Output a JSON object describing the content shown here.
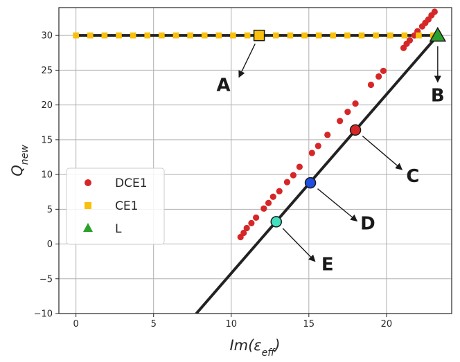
{
  "chart_data": {
    "type": "scatter",
    "xlabel_parts": {
      "base": "Im(",
      "sym": "ε",
      "sub": "eff",
      "close": ")"
    },
    "ylabel_parts": {
      "base": "Q",
      "sub": "new"
    },
    "xlim": [
      -1.1,
      24.2
    ],
    "ylim": [
      -10,
      34
    ],
    "xticks": [
      0,
      5,
      10,
      15,
      20
    ],
    "yticks": [
      -10,
      -5,
      0,
      5,
      10,
      15,
      20,
      25,
      30
    ],
    "grid": true,
    "legend_position": "center-left",
    "legend": [
      {
        "label": "DCE1",
        "marker": "circle",
        "color": "#d62728"
      },
      {
        "label": "CE1",
        "marker": "square",
        "color": "#f9c00c"
      },
      {
        "label": "L",
        "marker": "triangle",
        "color": "#2ca02c"
      }
    ],
    "lines": [
      {
        "x": [
          0,
          23.3
        ],
        "y": [
          30,
          30
        ],
        "color": "#222222"
      },
      {
        "x": [
          7.75,
          23.3
        ],
        "y": [
          -10,
          30
        ],
        "color": "#222222"
      }
    ],
    "series": [
      {
        "name": "DCE1",
        "marker": "circle",
        "color": "#d62728",
        "x": [
          10.6,
          10.8,
          11.0,
          11.3,
          11.6,
          12.1,
          12.4,
          12.7,
          13.1,
          13.6,
          14.0,
          14.4,
          15.2,
          15.6,
          16.2,
          17.0,
          17.5,
          18.0,
          19.0,
          19.5,
          19.8,
          21.1,
          21.3,
          21.5,
          21.8,
          22.0,
          22.3,
          22.5,
          22.7,
          22.9,
          23.1
        ],
        "y": [
          1.0,
          1.6,
          2.3,
          3.0,
          3.8,
          5.1,
          5.9,
          6.8,
          7.6,
          8.9,
          9.9,
          11.1,
          13.1,
          14.1,
          15.7,
          17.7,
          19.0,
          20.2,
          22.9,
          24.1,
          24.9,
          28.2,
          28.8,
          29.3,
          30.0,
          30.6,
          31.3,
          31.8,
          32.3,
          32.9,
          33.4
        ]
      },
      {
        "name": "CE1",
        "marker": "square",
        "color": "#f9c00c",
        "x": [
          0,
          0.92,
          1.84,
          2.76,
          3.68,
          4.6,
          5.52,
          6.44,
          7.36,
          8.28,
          9.2,
          10.12,
          11.04,
          11.96,
          12.88,
          13.8,
          14.72,
          15.64,
          16.56,
          17.48,
          18.4,
          19.32,
          20.24,
          21.16,
          22.08,
          23.0
        ],
        "y": [
          30,
          30,
          30,
          30,
          30,
          30,
          30,
          30,
          30,
          30,
          30,
          30,
          30,
          30,
          30,
          30,
          30,
          30,
          30,
          30,
          30,
          30,
          30,
          30,
          30,
          30
        ]
      },
      {
        "name": "L",
        "marker": "triangle",
        "color": "#2ca02c",
        "x": [
          23.3
        ],
        "y": [
          30
        ]
      }
    ],
    "highlights": [
      {
        "label": "A",
        "x": 11.8,
        "y": 30.0,
        "marker": "square",
        "color": "#f9c00c",
        "text_x": 9.5,
        "text_y": 22.0,
        "arrow_to": [
          10.5,
          24.0
        ]
      },
      {
        "label": "B",
        "x": 23.3,
        "y": 30.0,
        "marker": "triangle",
        "color": "#2ca02c",
        "text_x": 23.3,
        "text_y": 20.5,
        "arrow_to": [
          23.3,
          23.3
        ]
      },
      {
        "label": "C",
        "x": 18.0,
        "y": 16.4,
        "marker": "circle",
        "color": "#d62728",
        "text_x": 21.7,
        "text_y": 8.9,
        "arrow_to": [
          21.0,
          10.7
        ]
      },
      {
        "label": "D",
        "x": 15.1,
        "y": 8.8,
        "marker": "circle",
        "color": "#1f4fe0",
        "text_x": 18.8,
        "text_y": 2.1,
        "arrow_to": [
          18.1,
          3.3
        ]
      },
      {
        "label": "E",
        "x": 12.9,
        "y": 3.2,
        "marker": "circle",
        "color": "#40e0c0",
        "text_x": 16.2,
        "text_y": -3.8,
        "arrow_to": [
          15.4,
          -2.5
        ]
      }
    ]
  }
}
